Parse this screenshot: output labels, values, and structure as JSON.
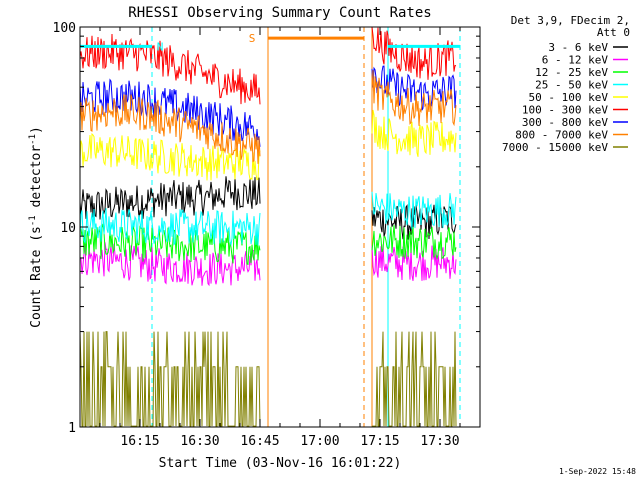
{
  "chart_data": {
    "type": "line",
    "title": "RHESSI Observing Summary Count Rates",
    "xlabel": "Start Time (03-Nov-16 16:01:22)",
    "ylabel_text": "Count Rate (s",
    "ylabel_sup1": "-1",
    "ylabel_mid": " detector",
    "ylabel_sup2": "-1",
    "ylabel_end": ")",
    "ylabel": "Count Rate (s-1 detector-1)",
    "yscale": "log",
    "ylim": [
      1,
      100
    ],
    "xlim_minutes": [
      0,
      100
    ],
    "x_tick_labels": [
      "16:15",
      "16:30",
      "16:45",
      "17:00",
      "17:15",
      "17:30"
    ],
    "x_tick_minutes": [
      15,
      30,
      45,
      60,
      75,
      90
    ],
    "y_tick_labels": [
      "1",
      "10",
      "100"
    ],
    "y_tick_values": [
      1,
      10,
      100
    ],
    "legend_header": [
      "Det 3,9, FDecim 2,",
      "Att 0"
    ],
    "legend_position": "right",
    "series": [
      {
        "name": "3 - 6 keV",
        "color": "#000000",
        "x": [
          0,
          8,
          16,
          24,
          32,
          38,
          44,
          45,
          47,
          60,
          72,
          73,
          75,
          80,
          86,
          92,
          94
        ],
        "y": [
          12.5,
          13,
          13.5,
          14,
          14,
          15,
          14.5,
          14.5,
          null,
          null,
          null,
          11,
          11,
          10.5,
          10.5,
          11,
          11
        ]
      },
      {
        "name": "6 - 12 keV",
        "color": "#ff00ff",
        "x": [
          0,
          8,
          16,
          24,
          32,
          38,
          44,
          45,
          47,
          60,
          72,
          73,
          75,
          80,
          86,
          92,
          94
        ],
        "y": [
          7,
          6.8,
          6.5,
          6.3,
          6.2,
          6.2,
          6.3,
          6.3,
          null,
          null,
          null,
          7,
          6.8,
          6.6,
          6.6,
          6.7,
          6.7
        ]
      },
      {
        "name": "12 - 25 keV",
        "color": "#00ff00",
        "x": [
          0,
          8,
          16,
          24,
          32,
          38,
          44,
          45,
          47,
          60,
          72,
          73,
          75,
          80,
          86,
          92,
          94
        ],
        "y": [
          8.5,
          8.4,
          8.2,
          8.1,
          8.0,
          8.0,
          8.0,
          8.0,
          null,
          null,
          null,
          8.8,
          8.6,
          8.5,
          8.5,
          8.6,
          8.6
        ]
      },
      {
        "name": "25 - 50 keV",
        "color": "#00ffff",
        "x": [
          0,
          8,
          16,
          24,
          32,
          38,
          44,
          45,
          47,
          60,
          72,
          73,
          75,
          80,
          86,
          92,
          94
        ],
        "y": [
          10.2,
          10.2,
          10.1,
          10.0,
          9.9,
          9.9,
          9.9,
          9.9,
          null,
          null,
          null,
          13,
          12.5,
          12,
          12,
          12.2,
          12.2
        ]
      },
      {
        "name": "50 - 100 keV",
        "color": "#ffff00",
        "x": [
          0,
          8,
          16,
          24,
          32,
          38,
          44,
          45,
          47,
          60,
          72,
          73,
          75,
          80,
          86,
          92,
          94
        ],
        "y": [
          24,
          24,
          23,
          22,
          21,
          21,
          21,
          21,
          null,
          null,
          null,
          33,
          30,
          28,
          27,
          28,
          28
        ]
      },
      {
        "name": "100 - 300 keV",
        "color": "#ff0000",
        "x": [
          0,
          8,
          16,
          24,
          32,
          38,
          44,
          45,
          47,
          60,
          72,
          73,
          75,
          80,
          86,
          92,
          94
        ],
        "y": [
          73,
          75,
          73,
          66,
          57,
          52,
          48,
          46,
          null,
          null,
          null,
          95,
          82,
          72,
          66,
          70,
          70
        ]
      },
      {
        "name": "300 - 800 keV",
        "color": "#0000ff",
        "x": [
          0,
          8,
          16,
          24,
          32,
          38,
          44,
          45,
          47,
          60,
          72,
          73,
          75,
          80,
          86,
          92,
          94
        ],
        "y": [
          43,
          45,
          44,
          40,
          36,
          33,
          31,
          30,
          null,
          null,
          null,
          62,
          54,
          49,
          46,
          48,
          48
        ]
      },
      {
        "name": "800 - 7000 keV",
        "color": "#ff8000",
        "x": [
          0,
          8,
          16,
          24,
          32,
          38,
          44,
          45,
          47,
          60,
          72,
          73,
          75,
          80,
          86,
          92,
          94
        ],
        "y": [
          36,
          38,
          37,
          33,
          30,
          27,
          25,
          24,
          null,
          null,
          null,
          51,
          45,
          41,
          39,
          40,
          40
        ]
      },
      {
        "name": "7000 - 15000 keV",
        "color": "#808000",
        "x": [
          0,
          8,
          16,
          24,
          32,
          38,
          44,
          45,
          47,
          60,
          72,
          73,
          75,
          80,
          86,
          92,
          94
        ],
        "y": [
          1.6,
          1.5,
          1.4,
          1.3,
          1.3,
          1.2,
          1.2,
          1.2,
          null,
          null,
          null,
          1.7,
          1.6,
          1.6,
          1.5,
          1.6,
          1.6
        ]
      }
    ],
    "flags": [
      {
        "label": "N",
        "color": "#00ffff",
        "x_start": 0,
        "x_end": 18,
        "y": 80,
        "x_label": 20
      },
      {
        "label": "",
        "color": "#00ffff",
        "x_start": 77,
        "x_end": 95,
        "y": 80
      },
      {
        "label": "S",
        "color": "#ff8000",
        "x_start": 47,
        "x_end": 71,
        "y": 88,
        "x_label": 43
      }
    ],
    "markers": [
      {
        "color": "#00ffff",
        "style": "dashed",
        "x": 18
      },
      {
        "color": "#ff8000",
        "style": "solid",
        "x": 47
      },
      {
        "color": "#ff8000",
        "style": "dashed",
        "x": 71
      },
      {
        "color": "#ff8000",
        "style": "solid",
        "x": 73
      },
      {
        "color": "#00ffff",
        "style": "solid",
        "x": 77
      },
      {
        "color": "#00ffff",
        "style": "dashed",
        "x": 95
      },
      {
        "color": "#00ffff",
        "style": "solid",
        "x": 0
      }
    ],
    "footer": "1-Sep-2022 15:48"
  }
}
